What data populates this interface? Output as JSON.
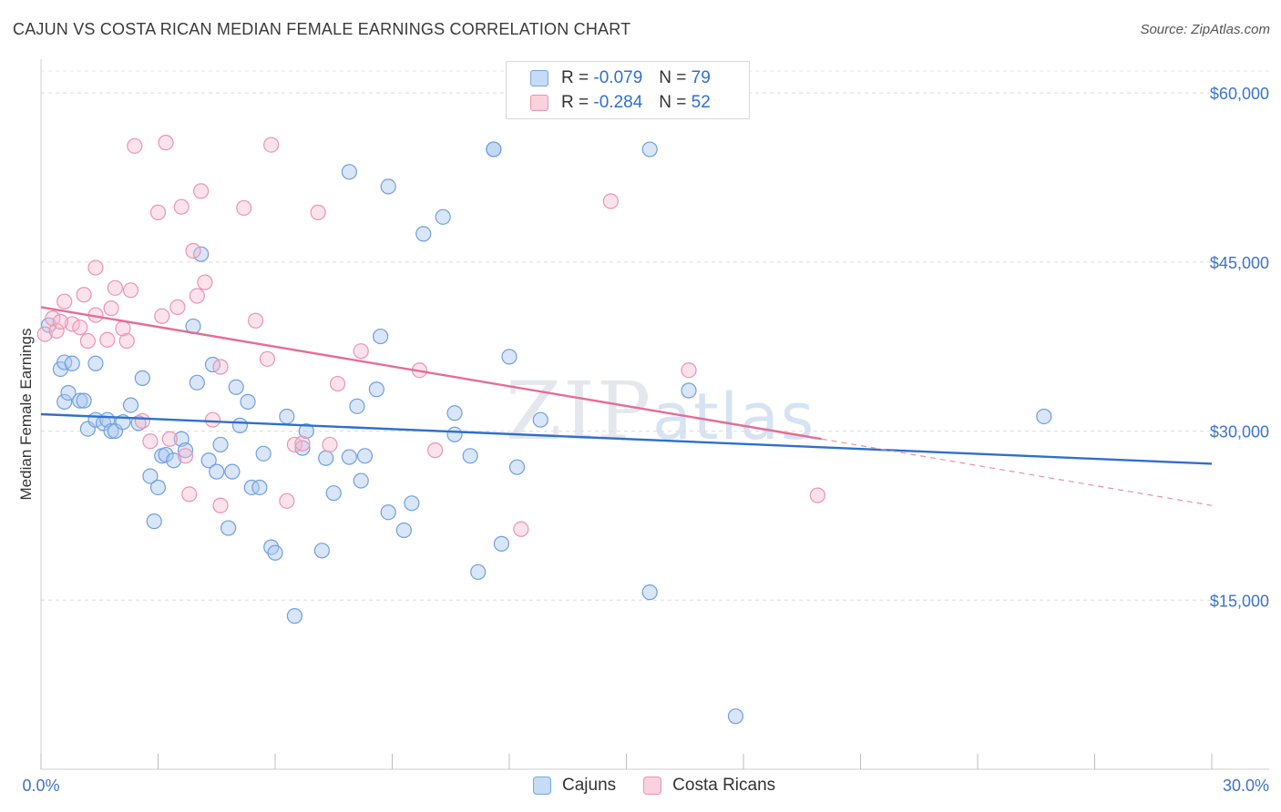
{
  "header": {
    "title": "CAJUN VS COSTA RICAN MEDIAN FEMALE EARNINGS CORRELATION CHART",
    "source": "Source: ZipAtlas.com"
  },
  "watermark": {
    "zip": "ZIP",
    "atlas": "atlas"
  },
  "legend": {
    "rows": [
      {
        "r_label": "R =",
        "r_value": "-0.079",
        "n_label": "N =",
        "n_value": "79",
        "color": "#a9c8f0"
      },
      {
        "r_label": "R =",
        "r_value": "-0.284",
        "n_label": "N =",
        "n_value": "52",
        "color": "#f7b8cc"
      }
    ]
  },
  "bottom_legend": {
    "cajuns": "Cajuns",
    "costa_ricans": "Costa Ricans"
  },
  "chart_data": {
    "type": "scatter",
    "title": "CAJUN VS COSTA RICAN MEDIAN FEMALE EARNINGS CORRELATION CHART",
    "xlabel": "",
    "ylabel": "Median Female Earnings",
    "xlim": [
      0,
      30
    ],
    "ylim": [
      0,
      63000
    ],
    "x_tick_labels": [
      "0.0%",
      "30.0%"
    ],
    "y_ticks": [
      15000,
      30000,
      45000,
      60000
    ],
    "y_tick_labels": [
      "$15,000",
      "$30,000",
      "$45,000",
      "$60,000"
    ],
    "grid": true,
    "legend_position": "top-center",
    "colors": {
      "cajuns": "#4a86d8",
      "costa_ricans": "#e8759c"
    },
    "series": [
      {
        "name": "Cajuns",
        "trend": {
          "x": [
            0,
            30
          ],
          "y": [
            31500,
            27100
          ]
        },
        "points": [
          [
            0.2,
            39400
          ],
          [
            0.5,
            35500
          ],
          [
            0.6,
            32600
          ],
          [
            0.6,
            36100
          ],
          [
            0.7,
            33400
          ],
          [
            0.8,
            36000
          ],
          [
            1.0,
            32700
          ],
          [
            1.1,
            32700
          ],
          [
            1.2,
            30200
          ],
          [
            1.4,
            36000
          ],
          [
            1.4,
            31000
          ],
          [
            1.6,
            30700
          ],
          [
            1.7,
            31000
          ],
          [
            1.8,
            30000
          ],
          [
            1.9,
            30000
          ],
          [
            2.1,
            30800
          ],
          [
            2.3,
            32300
          ],
          [
            2.5,
            30700
          ],
          [
            2.6,
            34700
          ],
          [
            2.8,
            26000
          ],
          [
            2.9,
            22000
          ],
          [
            3.0,
            25000
          ],
          [
            3.1,
            27800
          ],
          [
            3.2,
            27900
          ],
          [
            3.4,
            27400
          ],
          [
            3.6,
            29300
          ],
          [
            3.7,
            28300
          ],
          [
            3.9,
            39300
          ],
          [
            4.0,
            34300
          ],
          [
            4.1,
            45700
          ],
          [
            4.3,
            27400
          ],
          [
            4.4,
            35900
          ],
          [
            4.5,
            26400
          ],
          [
            4.6,
            28800
          ],
          [
            4.8,
            21400
          ],
          [
            5.0,
            33900
          ],
          [
            5.1,
            30500
          ],
          [
            5.3,
            32600
          ],
          [
            5.4,
            25000
          ],
          [
            5.6,
            25000
          ],
          [
            5.7,
            28000
          ],
          [
            5.9,
            19700
          ],
          [
            6.0,
            19200
          ],
          [
            6.3,
            31300
          ],
          [
            6.5,
            13600
          ],
          [
            6.7,
            28500
          ],
          [
            6.8,
            30000
          ],
          [
            7.2,
            19400
          ],
          [
            7.3,
            27600
          ],
          [
            7.5,
            24500
          ],
          [
            7.9,
            27700
          ],
          [
            8.1,
            32200
          ],
          [
            8.2,
            25600
          ],
          [
            8.3,
            27800
          ],
          [
            8.6,
            33700
          ],
          [
            8.7,
            38400
          ],
          [
            8.9,
            22800
          ],
          [
            8.9,
            51700
          ],
          [
            9.3,
            21200
          ],
          [
            9.5,
            23600
          ],
          [
            9.8,
            47500
          ],
          [
            10.3,
            49000
          ],
          [
            10.6,
            31600
          ],
          [
            10.6,
            29700
          ],
          [
            11.0,
            27800
          ],
          [
            11.2,
            17500
          ],
          [
            11.6,
            55000
          ],
          [
            11.8,
            20000
          ],
          [
            12.0,
            36600
          ],
          [
            12.2,
            26800
          ],
          [
            12.8,
            31000
          ],
          [
            15.6,
            55000
          ],
          [
            15.6,
            15700
          ],
          [
            16.6,
            33600
          ],
          [
            17.8,
            4700
          ],
          [
            25.7,
            31300
          ],
          [
            7.9,
            53000
          ],
          [
            11.6,
            55000
          ],
          [
            4.9,
            26400
          ]
        ]
      },
      {
        "name": "Costa Ricans",
        "trend": {
          "x": [
            0,
            20
          ],
          "y": [
            41000,
            29300
          ]
        },
        "trend_dashed": {
          "x": [
            20,
            30
          ],
          "y": [
            29300,
            23400
          ]
        },
        "points": [
          [
            0.1,
            38600
          ],
          [
            0.3,
            40000
          ],
          [
            0.4,
            38900
          ],
          [
            0.6,
            41500
          ],
          [
            0.8,
            39500
          ],
          [
            1.0,
            39200
          ],
          [
            1.1,
            42100
          ],
          [
            1.2,
            38000
          ],
          [
            1.4,
            40300
          ],
          [
            1.4,
            44500
          ],
          [
            1.7,
            38100
          ],
          [
            1.8,
            40900
          ],
          [
            1.9,
            42700
          ],
          [
            2.1,
            39100
          ],
          [
            2.2,
            38000
          ],
          [
            2.3,
            42500
          ],
          [
            2.4,
            55300
          ],
          [
            2.6,
            30900
          ],
          [
            2.8,
            29100
          ],
          [
            3.0,
            49400
          ],
          [
            3.1,
            40200
          ],
          [
            3.2,
            55600
          ],
          [
            3.3,
            29300
          ],
          [
            3.5,
            41000
          ],
          [
            3.6,
            49900
          ],
          [
            3.7,
            27800
          ],
          [
            3.8,
            24400
          ],
          [
            3.9,
            46000
          ],
          [
            4.0,
            42000
          ],
          [
            4.1,
            51300
          ],
          [
            4.2,
            43200
          ],
          [
            4.4,
            31000
          ],
          [
            4.6,
            23400
          ],
          [
            4.6,
            35700
          ],
          [
            5.2,
            49800
          ],
          [
            5.5,
            39800
          ],
          [
            5.8,
            36400
          ],
          [
            5.9,
            55400
          ],
          [
            6.5,
            28800
          ],
          [
            6.7,
            28900
          ],
          [
            7.1,
            49400
          ],
          [
            7.4,
            28800
          ],
          [
            7.6,
            34200
          ],
          [
            8.2,
            37100
          ],
          [
            9.7,
            35400
          ],
          [
            10.1,
            28300
          ],
          [
            12.3,
            21300
          ],
          [
            14.6,
            50400
          ],
          [
            16.6,
            35400
          ],
          [
            19.9,
            24300
          ],
          [
            6.3,
            23800
          ],
          [
            0.5,
            39700
          ]
        ]
      }
    ]
  }
}
